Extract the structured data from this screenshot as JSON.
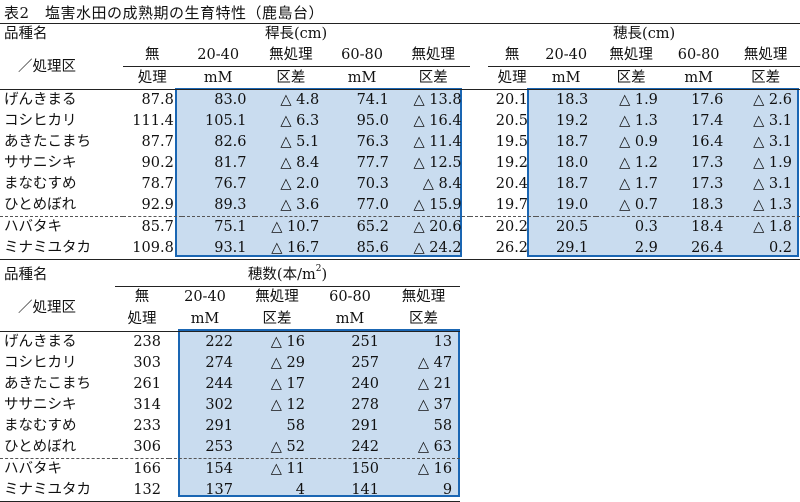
{
  "caption": "表2　塩害水田の成熟期の生育特性（鹿島台）",
  "header": {
    "variety": "品種名",
    "treatment": "／処理区",
    "culm_group": "稈長(cm)",
    "panicle_group": "穂長(cm)",
    "count_group_prefix": "穂数(本/m",
    "count_group_sup": "2",
    "count_group_suffix": ")",
    "col_none_1": "無",
    "col_none_2": "処理",
    "col_2040_1": "20-40",
    "col_2040_2": "mM",
    "col_diff_1": "無処理",
    "col_diff_2": "区差",
    "col_6080_1": "60-80",
    "col_6080_2": "mM"
  },
  "table1_rows": [
    {
      "name": "げんきまる",
      "c": [
        "87.8",
        "83.0",
        "△ 4.8",
        "74.1",
        "△ 13.8"
      ],
      "p": [
        "20.1",
        "18.3",
        "△ 1.9",
        "17.6",
        "△ 2.6"
      ]
    },
    {
      "name": "コシヒカリ",
      "c": [
        "111.4",
        "105.1",
        "△ 6.3",
        "95.0",
        "△ 16.4"
      ],
      "p": [
        "20.5",
        "19.2",
        "△ 1.3",
        "17.4",
        "△ 3.1"
      ]
    },
    {
      "name": "あきたこまち",
      "c": [
        "87.7",
        "82.6",
        "△ 5.1",
        "76.3",
        "△ 11.4"
      ],
      "p": [
        "19.5",
        "18.7",
        "△ 0.9",
        "16.4",
        "△ 3.1"
      ]
    },
    {
      "name": "ササニシキ",
      "c": [
        "90.2",
        "81.7",
        "△ 8.4",
        "77.7",
        "△ 12.5"
      ],
      "p": [
        "19.2",
        "18.0",
        "△ 1.2",
        "17.3",
        "△ 1.9"
      ]
    },
    {
      "name": "まなむすめ",
      "c": [
        "78.7",
        "76.7",
        "△ 2.0",
        "70.3",
        "△ 8.4"
      ],
      "p": [
        "20.4",
        "18.7",
        "△ 1.7",
        "17.3",
        "△ 3.1"
      ]
    },
    {
      "name": "ひとめぼれ",
      "c": [
        "92.9",
        "89.3",
        "△ 3.6",
        "77.0",
        "△ 15.9"
      ],
      "p": [
        "19.7",
        "19.0",
        "△ 0.7",
        "18.3",
        "△ 1.3"
      ]
    },
    {
      "name": "ハバタキ",
      "c": [
        "85.7",
        "75.1",
        "△ 10.7",
        "65.2",
        "△ 20.6"
      ],
      "p": [
        "20.2",
        "20.5",
        "0.3",
        "18.4",
        "△ 1.8"
      ]
    },
    {
      "name": "ミナミユタカ",
      "c": [
        "109.8",
        "93.1",
        "△ 16.7",
        "85.6",
        "△ 24.2"
      ],
      "p": [
        "26.2",
        "29.1",
        "2.9",
        "26.4",
        "0.2"
      ]
    }
  ],
  "table2_rows": [
    {
      "name": "げんきまる",
      "v": [
        "238",
        "222",
        "△ 16",
        "251",
        "13"
      ]
    },
    {
      "name": "コシヒカリ",
      "v": [
        "303",
        "274",
        "△ 29",
        "257",
        "△ 47"
      ]
    },
    {
      "name": "あきたこまち",
      "v": [
        "261",
        "244",
        "△ 17",
        "240",
        "△ 21"
      ]
    },
    {
      "name": "ササニシキ",
      "v": [
        "314",
        "302",
        "△ 12",
        "278",
        "△ 37"
      ]
    },
    {
      "name": "まなむすめ",
      "v": [
        "233",
        "291",
        "58",
        "291",
        "58"
      ]
    },
    {
      "name": "ひとめぼれ",
      "v": [
        "306",
        "253",
        "△ 52",
        "242",
        "△ 63"
      ]
    },
    {
      "name": "ハバタキ",
      "v": [
        "166",
        "154",
        "△ 11",
        "150",
        "△ 16"
      ]
    },
    {
      "name": "ミナミユタカ",
      "v": [
        "132",
        "137",
        "4",
        "141",
        "9"
      ]
    }
  ],
  "colors": {
    "highlight_fill": "#c9dcef",
    "highlight_border": "#1a66b3"
  }
}
